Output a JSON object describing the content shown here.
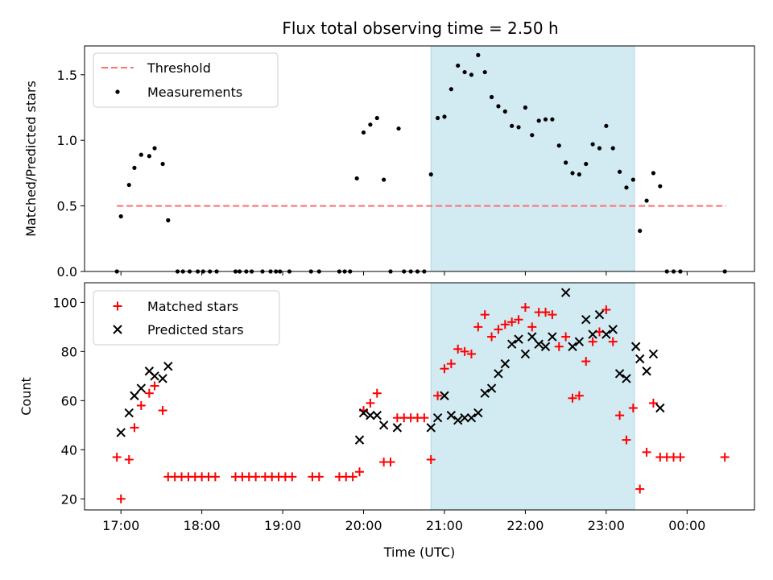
{
  "chart_data": [
    {
      "type": "scatter",
      "title": "Flux total observing time = 2.50 h",
      "xlabel": "",
      "ylabel": "Matched/Predicted stars",
      "xlim": [
        "16:33",
        "00:50"
      ],
      "ylim": [
        0,
        1.72
      ],
      "x_ticks": [
        "17:00",
        "18:00",
        "19:00",
        "20:00",
        "21:00",
        "22:00",
        "23:00",
        "00:00"
      ],
      "x_tick_labels_shown": false,
      "y_ticks": [
        0.0,
        0.5,
        1.0,
        1.5
      ],
      "y_tick_labels": [
        "0.0",
        "0.5",
        "1.0",
        "1.5"
      ],
      "legend": {
        "placement": "top-left",
        "entries": [
          "Threshold",
          "Measurements"
        ]
      },
      "shaded_span": {
        "from": "20:50",
        "to": "23:21",
        "color": "#add8e6"
      },
      "threshold": {
        "name": "Threshold",
        "value": 0.5,
        "from": "16:57",
        "to": "00:29",
        "color": "#ff7070"
      },
      "series": [
        {
          "name": "Measurements",
          "color": "#000000",
          "points": [
            [
              "16:57",
              0.0
            ],
            [
              "17:00",
              0.42
            ],
            [
              "17:06",
              0.66
            ],
            [
              "17:10",
              0.79
            ],
            [
              "17:15",
              0.89
            ],
            [
              "17:21",
              0.88
            ],
            [
              "17:25",
              0.94
            ],
            [
              "17:31",
              0.82
            ],
            [
              "17:35",
              0.39
            ],
            [
              "17:42",
              0.0
            ],
            [
              "17:46",
              0.0
            ],
            [
              "17:51",
              0.0
            ],
            [
              "17:57",
              0.0
            ],
            [
              "18:01",
              0.0
            ],
            [
              "18:06",
              0.0
            ],
            [
              "18:11",
              0.0
            ],
            [
              "18:25",
              0.0
            ],
            [
              "18:28",
              0.0
            ],
            [
              "18:33",
              0.0
            ],
            [
              "18:37",
              0.0
            ],
            [
              "18:45",
              0.0
            ],
            [
              "18:51",
              0.0
            ],
            [
              "18:55",
              0.0
            ],
            [
              "18:58",
              0.0
            ],
            [
              "19:05",
              0.0
            ],
            [
              "19:21",
              0.0
            ],
            [
              "19:27",
              0.0
            ],
            [
              "19:42",
              0.0
            ],
            [
              "19:46",
              0.0
            ],
            [
              "19:50",
              0.0
            ],
            [
              "19:55",
              0.71
            ],
            [
              "20:00",
              1.06
            ],
            [
              "20:05",
              1.12
            ],
            [
              "20:10",
              1.17
            ],
            [
              "20:15",
              0.7
            ],
            [
              "20:20",
              0.0
            ],
            [
              "20:26",
              1.09
            ],
            [
              "20:30",
              0.0
            ],
            [
              "20:35",
              0.0
            ],
            [
              "20:40",
              0.0
            ],
            [
              "20:45",
              0.0
            ],
            [
              "20:50",
              0.74
            ],
            [
              "20:55",
              1.17
            ],
            [
              "21:00",
              1.18
            ],
            [
              "21:05",
              1.39
            ],
            [
              "21:10",
              1.57
            ],
            [
              "21:15",
              1.52
            ],
            [
              "21:20",
              1.5
            ],
            [
              "21:25",
              1.65
            ],
            [
              "21:30",
              1.52
            ],
            [
              "21:35",
              1.33
            ],
            [
              "21:40",
              1.26
            ],
            [
              "21:45",
              1.22
            ],
            [
              "21:50",
              1.11
            ],
            [
              "21:55",
              1.1
            ],
            [
              "22:00",
              1.25
            ],
            [
              "22:05",
              1.04
            ],
            [
              "22:10",
              1.15
            ],
            [
              "22:15",
              1.16
            ],
            [
              "22:20",
              1.16
            ],
            [
              "22:25",
              0.96
            ],
            [
              "22:30",
              0.83
            ],
            [
              "22:35",
              0.75
            ],
            [
              "22:40",
              0.74
            ],
            [
              "22:45",
              0.82
            ],
            [
              "22:50",
              0.97
            ],
            [
              "22:55",
              0.94
            ],
            [
              "23:00",
              1.11
            ],
            [
              "23:05",
              0.94
            ],
            [
              "23:10",
              0.76
            ],
            [
              "23:15",
              0.64
            ],
            [
              "23:20",
              0.7
            ],
            [
              "23:25",
              0.31
            ],
            [
              "23:30",
              0.54
            ],
            [
              "23:35",
              0.75
            ],
            [
              "23:40",
              0.65
            ],
            [
              "23:45",
              0.0
            ],
            [
              "23:50",
              0.0
            ],
            [
              "23:55",
              0.0
            ],
            [
              "00:28",
              0.0
            ]
          ]
        }
      ]
    },
    {
      "type": "scatter",
      "title": "",
      "xlabel": "Time (UTC)",
      "ylabel": "Count",
      "xlim": [
        "16:33",
        "00:50"
      ],
      "ylim": [
        15.5,
        108
      ],
      "x_ticks": [
        "17:00",
        "18:00",
        "19:00",
        "20:00",
        "21:00",
        "22:00",
        "23:00",
        "00:00"
      ],
      "x_tick_labels": [
        "17:00",
        "18:00",
        "19:00",
        "20:00",
        "21:00",
        "22:00",
        "23:00",
        "00:00"
      ],
      "y_ticks": [
        20,
        40,
        60,
        80,
        100
      ],
      "y_tick_labels": [
        "20",
        "40",
        "60",
        "80",
        "100"
      ],
      "legend": {
        "placement": "top-left",
        "entries": [
          "Matched stars",
          "Predicted stars"
        ]
      },
      "shaded_span": {
        "from": "20:50",
        "to": "23:21",
        "color": "#add8e6"
      },
      "series": [
        {
          "name": "Matched stars",
          "marker": "plus",
          "color": "#ff0000",
          "points": [
            [
              "16:57",
              37
            ],
            [
              "17:00",
              20
            ],
            [
              "17:06",
              36
            ],
            [
              "17:10",
              49
            ],
            [
              "17:15",
              58
            ],
            [
              "17:21",
              63
            ],
            [
              "17:25",
              66
            ],
            [
              "17:31",
              56
            ],
            [
              "17:35",
              29
            ],
            [
              "17:40",
              29
            ],
            [
              "17:45",
              29
            ],
            [
              "17:50",
              29
            ],
            [
              "17:55",
              29
            ],
            [
              "18:00",
              29
            ],
            [
              "18:05",
              29
            ],
            [
              "18:10",
              29
            ],
            [
              "18:25",
              29
            ],
            [
              "18:30",
              29
            ],
            [
              "18:35",
              29
            ],
            [
              "18:40",
              29
            ],
            [
              "18:47",
              29
            ],
            [
              "18:52",
              29
            ],
            [
              "18:57",
              29
            ],
            [
              "19:02",
              29
            ],
            [
              "19:07",
              29
            ],
            [
              "19:22",
              29
            ],
            [
              "19:27",
              29
            ],
            [
              "19:42",
              29
            ],
            [
              "19:47",
              29
            ],
            [
              "19:52",
              29
            ],
            [
              "19:57",
              31
            ],
            [
              "20:00",
              56
            ],
            [
              "20:05",
              59
            ],
            [
              "20:10",
              63
            ],
            [
              "20:15",
              35
            ],
            [
              "20:20",
              35
            ],
            [
              "20:25",
              53
            ],
            [
              "20:30",
              53
            ],
            [
              "20:35",
              53
            ],
            [
              "20:40",
              53
            ],
            [
              "20:45",
              53
            ],
            [
              "20:50",
              36
            ],
            [
              "20:55",
              62
            ],
            [
              "21:00",
              73
            ],
            [
              "21:05",
              75
            ],
            [
              "21:10",
              81
            ],
            [
              "21:15",
              80
            ],
            [
              "21:20",
              79
            ],
            [
              "21:25",
              90
            ],
            [
              "21:30",
              95
            ],
            [
              "21:35",
              86
            ],
            [
              "21:40",
              89
            ],
            [
              "21:45",
              91
            ],
            [
              "21:50",
              92
            ],
            [
              "21:55",
              93
            ],
            [
              "22:00",
              98
            ],
            [
              "22:05",
              90
            ],
            [
              "22:10",
              96
            ],
            [
              "22:15",
              96
            ],
            [
              "22:20",
              95
            ],
            [
              "22:25",
              82
            ],
            [
              "22:30",
              86
            ],
            [
              "22:35",
              61
            ],
            [
              "22:40",
              62
            ],
            [
              "22:45",
              76
            ],
            [
              "22:50",
              84
            ],
            [
              "22:55",
              88
            ],
            [
              "23:00",
              97
            ],
            [
              "23:05",
              84
            ],
            [
              "23:10",
              54
            ],
            [
              "23:15",
              44
            ],
            [
              "23:20",
              57
            ],
            [
              "23:25",
              24
            ],
            [
              "23:30",
              39
            ],
            [
              "23:35",
              59
            ],
            [
              "23:40",
              37
            ],
            [
              "23:45",
              37
            ],
            [
              "23:50",
              37
            ],
            [
              "23:55",
              37
            ],
            [
              "00:28",
              37
            ]
          ]
        },
        {
          "name": "Predicted stars",
          "marker": "x",
          "color": "#000000",
          "points": [
            [
              "17:00",
              47
            ],
            [
              "17:06",
              55
            ],
            [
              "17:10",
              62
            ],
            [
              "17:15",
              65
            ],
            [
              "17:21",
              72
            ],
            [
              "17:25",
              70
            ],
            [
              "17:31",
              69
            ],
            [
              "17:35",
              74
            ],
            [
              "19:57",
              44
            ],
            [
              "20:00",
              55
            ],
            [
              "20:05",
              54
            ],
            [
              "20:10",
              54
            ],
            [
              "20:15",
              50
            ],
            [
              "20:25",
              49
            ],
            [
              "20:50",
              49
            ],
            [
              "20:55",
              53
            ],
            [
              "21:00",
              62
            ],
            [
              "21:05",
              54
            ],
            [
              "21:10",
              52
            ],
            [
              "21:15",
              53
            ],
            [
              "21:20",
              53
            ],
            [
              "21:25",
              55
            ],
            [
              "21:30",
              63
            ],
            [
              "21:35",
              65
            ],
            [
              "21:40",
              71
            ],
            [
              "21:45",
              75
            ],
            [
              "21:50",
              83
            ],
            [
              "21:55",
              85
            ],
            [
              "22:00",
              79
            ],
            [
              "22:05",
              86
            ],
            [
              "22:10",
              83
            ],
            [
              "22:15",
              82
            ],
            [
              "22:20",
              86
            ],
            [
              "22:30",
              104
            ],
            [
              "22:35",
              82
            ],
            [
              "22:40",
              84
            ],
            [
              "22:45",
              93
            ],
            [
              "22:50",
              87
            ],
            [
              "22:55",
              95
            ],
            [
              "23:00",
              87
            ],
            [
              "23:05",
              89
            ],
            [
              "23:10",
              71
            ],
            [
              "23:15",
              69
            ],
            [
              "23:22",
              82
            ],
            [
              "23:25",
              77
            ],
            [
              "23:30",
              72
            ],
            [
              "23:35",
              79
            ],
            [
              "23:40",
              57
            ]
          ]
        }
      ]
    }
  ]
}
